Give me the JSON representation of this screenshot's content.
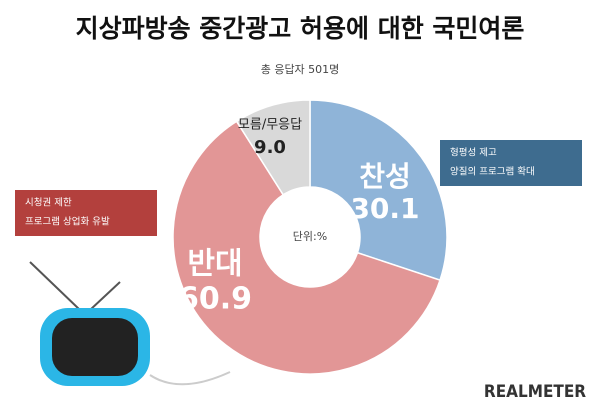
{
  "chart_data": {
    "type": "donut",
    "title": "지상파방송 중간광고 허용에 대한 국민여론",
    "subtitle": "총 응답자 501명",
    "center_label": "단위:%",
    "categories": [
      "찬성",
      "반대",
      "모름/무응답"
    ],
    "values": [
      30.1,
      60.9,
      9.0
    ],
    "value_labels": [
      "30.1",
      "60.9",
      "9.0"
    ],
    "colors": [
      "#8fb4d8",
      "#e29696",
      "#d9d9d9"
    ],
    "callouts": [
      {
        "items": [
          "형평성 제고",
          "양질의 프로그램 확대"
        ],
        "color": "#3e6c8f"
      },
      {
        "items": [
          "시청권 제한",
          "프로그램 상업화 유발"
        ],
        "color": "#b3403d"
      }
    ],
    "brand": "REALMETER"
  }
}
